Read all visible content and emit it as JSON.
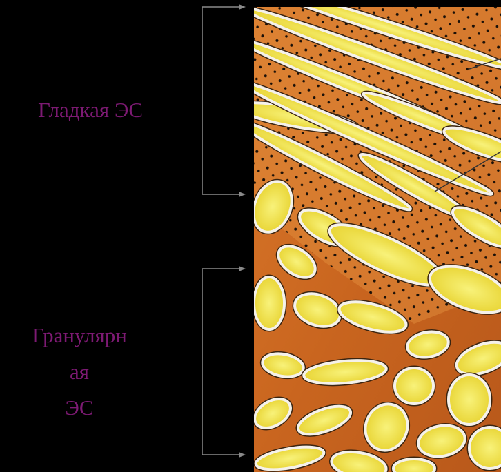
{
  "labels": {
    "smooth": "Гладкая ЭС",
    "granular": [
      "Гранулярн",
      "ая",
      "ЭС"
    ]
  }
}
